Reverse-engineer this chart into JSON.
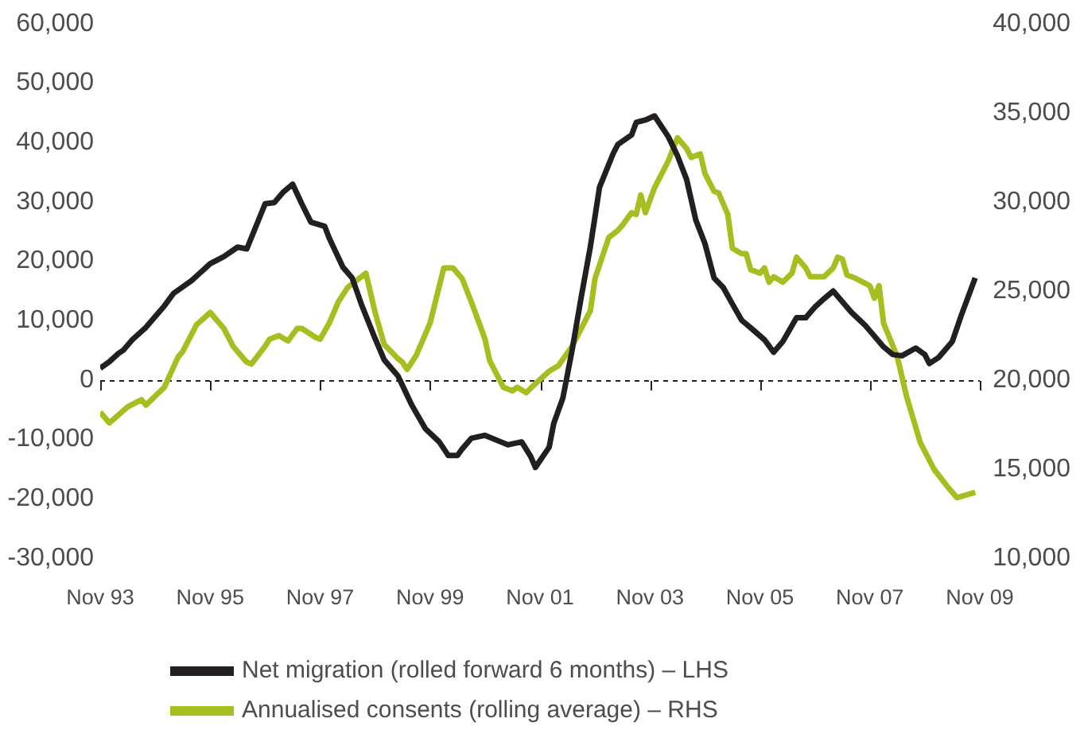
{
  "chart_data": {
    "type": "line",
    "legend": "bottom",
    "xlim": [
      "1993-11",
      "2009-11"
    ],
    "xticks": [
      {
        "value": "1993-11",
        "label": "Nov 93"
      },
      {
        "value": "1995-11",
        "label": "Nov 95"
      },
      {
        "value": "1997-11",
        "label": "Nov 97"
      },
      {
        "value": "1999-11",
        "label": "Nov 99"
      },
      {
        "value": "2001-11",
        "label": "Nov 01"
      },
      {
        "value": "2003-11",
        "label": "Nov 03"
      },
      {
        "value": "2005-11",
        "label": "Nov 05"
      },
      {
        "value": "2007-11",
        "label": "Nov 07"
      },
      {
        "value": "2009-11",
        "label": "Nov 09"
      }
    ],
    "ylim": [
      -30000,
      60000
    ],
    "yticks": [
      {
        "value": -30000,
        "label": "-30,000"
      },
      {
        "value": -20000,
        "label": "-20,000"
      },
      {
        "value": -10000,
        "label": "-10,000"
      },
      0,
      {
        "value": 10000,
        "label": "10,000"
      },
      {
        "value": 20000,
        "label": "20,000"
      },
      {
        "value": 30000,
        "label": "30,000"
      },
      {
        "value": 40000,
        "label": "40,000"
      },
      {
        "value": 50000,
        "label": "50,000"
      },
      {
        "value": 60000,
        "label": "60,000"
      }
    ],
    "y2lim": [
      10000,
      40000
    ],
    "y2ticks": [
      {
        "value": 10000,
        "label": "10,000"
      },
      {
        "value": 15000,
        "label": "15,000"
      },
      {
        "value": 20000,
        "label": "20,000"
      },
      {
        "value": 25000,
        "label": "25,000"
      },
      {
        "value": 30000,
        "label": "30,000"
      },
      {
        "value": 35000,
        "label": "35,000"
      },
      {
        "value": 40000,
        "label": "40,000"
      }
    ],
    "ref_lines": [
      {
        "axis": "y",
        "value": 0,
        "line_style": "dashed",
        "color": "#231f20"
      }
    ],
    "series": [
      {
        "name": "Net migration (rolled forward 6 months) – LHS",
        "color": "#231f20",
        "x": [
          "1993-11",
          "1994-01",
          "1994-03",
          "1994-04",
          "1994-06",
          "1994-09",
          "1995-01",
          "1995-03",
          "1995-07",
          "1995-11",
          "1996-02",
          "1996-05",
          "1996-07",
          "1996-11",
          "1997-01",
          "1997-03",
          "1997-05",
          "1997-07",
          "1997-09",
          "1997-12",
          "1998-01",
          "1998-04",
          "1998-06",
          "1998-08",
          "1998-11",
          "1999-01",
          "1999-04",
          "1999-07",
          "1999-10",
          "2000-01",
          "2000-03",
          "2000-05",
          "2000-06",
          "2000-08",
          "2000-11",
          "2001-04",
          "2001-07",
          "2001-09",
          "2001-10",
          "2002-01",
          "2002-02",
          "2002-04",
          "2002-06",
          "2002-08",
          "2002-10",
          "2002-12",
          "2003-03",
          "2003-04",
          "2003-07",
          "2003-08",
          "2003-10",
          "2003-12",
          "2004-03",
          "2004-05",
          "2004-07",
          "2004-09",
          "2004-11",
          "2005-01",
          "2005-03",
          "2005-05",
          "2005-07",
          "2005-09",
          "2005-12",
          "2006-02",
          "2006-04",
          "2006-07",
          "2006-09",
          "2006-11",
          "2007-01",
          "2007-03",
          "2007-05",
          "2007-07",
          "2007-10",
          "2007-12",
          "2008-02",
          "2008-04",
          "2008-06",
          "2008-09",
          "2008-11",
          "2008-12",
          "2009-02",
          "2009-05",
          "2009-07",
          "2009-10"
        ],
        "values": [
          2000,
          3100,
          4500,
          5000,
          6800,
          8900,
          12500,
          14600,
          16800,
          19600,
          20800,
          22400,
          22100,
          29700,
          29900,
          31700,
          33000,
          29700,
          26600,
          25900,
          23900,
          19000,
          17200,
          12800,
          7000,
          3400,
          700,
          -4200,
          -8200,
          -10400,
          -12700,
          -12700,
          -11600,
          -9800,
          -9300,
          -10900,
          -10400,
          -12900,
          -14700,
          -11300,
          -7300,
          -3000,
          5000,
          14000,
          22500,
          32500,
          38200,
          39700,
          41300,
          43400,
          43800,
          44500,
          41000,
          37800,
          33800,
          27000,
          23000,
          17200,
          15600,
          12800,
          10100,
          8800,
          6800,
          4700,
          6500,
          10500,
          10500,
          12300,
          13700,
          15000,
          13200,
          11400,
          9200,
          7400,
          5600,
          4300,
          4100,
          5400,
          4300,
          2800,
          3800,
          6500,
          11000,
          17200
        ]
      },
      {
        "name": "Annualised consents (rolling average) – RHS",
        "color": "#a8bd1f",
        "axis": "y2",
        "x": [
          "1993-11",
          "1994-01",
          "1994-05",
          "1994-08",
          "1994-09",
          "1995-01",
          "1995-04",
          "1995-05",
          "1995-08",
          "1995-11",
          "1996-02",
          "1996-04",
          "1996-07",
          "1996-08",
          "1996-11",
          "1996-12",
          "1997-02",
          "1997-04",
          "1997-06",
          "1997-07",
          "1997-10",
          "1997-11",
          "1998-01",
          "1998-03",
          "1998-05",
          "1998-09",
          "1998-11",
          "1999-01",
          "1999-04",
          "1999-05",
          "1999-06",
          "1999-08",
          "1999-11",
          "2000-02",
          "2000-04",
          "2000-06",
          "2000-08",
          "2000-11",
          "2000-12",
          "2001-03",
          "2001-05",
          "2001-06",
          "2001-08",
          "2001-10",
          "2002-01",
          "2002-03",
          "2002-06",
          "2002-08",
          "2002-10",
          "2002-11",
          "2003-02",
          "2003-04",
          "2003-05",
          "2003-07",
          "2003-08",
          "2003-09",
          "2003-10",
          "2003-12",
          "2004-03",
          "2004-05",
          "2004-07",
          "2004-08",
          "2004-10",
          "2004-11",
          "2005-01",
          "2005-02",
          "2005-04",
          "2005-05",
          "2005-07",
          "2005-08",
          "2005-09",
          "2005-11",
          "2005-12",
          "2006-01",
          "2006-02",
          "2006-04",
          "2006-06",
          "2006-07",
          "2006-09",
          "2006-10",
          "2007-01",
          "2007-03",
          "2007-04",
          "2007-05",
          "2007-06",
          "2007-08",
          "2007-11",
          "2007-12",
          "2008-01",
          "2008-02",
          "2008-05",
          "2008-07",
          "2008-10",
          "2009-01",
          "2009-04",
          "2009-06",
          "2009-10"
        ],
        "values": [
          18200,
          17600,
          18500,
          18900,
          18600,
          19600,
          21300,
          21600,
          23100,
          23800,
          22900,
          21900,
          21000,
          20900,
          21900,
          22300,
          22500,
          22200,
          22900,
          22900,
          22400,
          22300,
          23200,
          24400,
          25200,
          26000,
          23800,
          22000,
          21200,
          21000,
          20600,
          21400,
          23200,
          26300,
          26300,
          25700,
          24400,
          22300,
          21100,
          19600,
          19400,
          19600,
          19300,
          19800,
          20500,
          20800,
          21900,
          22900,
          23900,
          25700,
          28000,
          28400,
          28700,
          29400,
          29300,
          30400,
          29400,
          30800,
          32300,
          33600,
          33000,
          32500,
          32700,
          31600,
          30600,
          30500,
          29300,
          27400,
          27100,
          27100,
          26200,
          26000,
          26300,
          25500,
          25800,
          25500,
          26000,
          26900,
          26300,
          25800,
          25800,
          26300,
          26900,
          26800,
          25900,
          25700,
          25300,
          24600,
          25300,
          23200,
          21300,
          19100,
          16500,
          15000,
          14000,
          13400,
          13700
        ]
      }
    ]
  }
}
